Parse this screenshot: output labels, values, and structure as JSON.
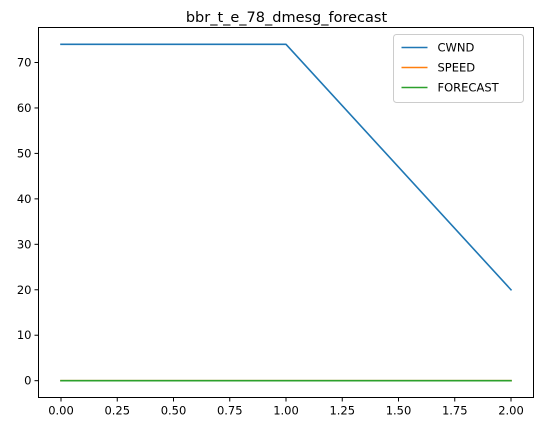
{
  "chart_data": {
    "type": "line",
    "title": "bbr_t_e_78_dmesg_forecast",
    "xlabel": "",
    "ylabel": "",
    "xlim": [
      -0.1,
      2.1
    ],
    "ylim": [
      -3.7,
      77.7
    ],
    "x_ticks": [
      0.0,
      0.25,
      0.5,
      0.75,
      1.0,
      1.25,
      1.5,
      1.75,
      2.0
    ],
    "x_tick_labels": [
      "0.00",
      "0.25",
      "0.50",
      "0.75",
      "1.00",
      "1.25",
      "1.50",
      "1.75",
      "2.00"
    ],
    "y_ticks": [
      0,
      10,
      20,
      30,
      40,
      50,
      60,
      70
    ],
    "y_tick_labels": [
      "0",
      "10",
      "20",
      "30",
      "40",
      "50",
      "60",
      "70"
    ],
    "grid": false,
    "legend_position": "top-right",
    "x": [
      0,
      1,
      2
    ],
    "series": [
      {
        "name": "CWND",
        "color": "#1f77b4",
        "values": [
          74,
          74,
          20
        ]
      },
      {
        "name": "SPEED",
        "color": "#ff7f0e",
        "values": [
          0,
          0,
          0
        ]
      },
      {
        "name": "FORECAST",
        "color": "#2ca02c",
        "values": [
          0,
          0,
          0
        ]
      }
    ]
  }
}
